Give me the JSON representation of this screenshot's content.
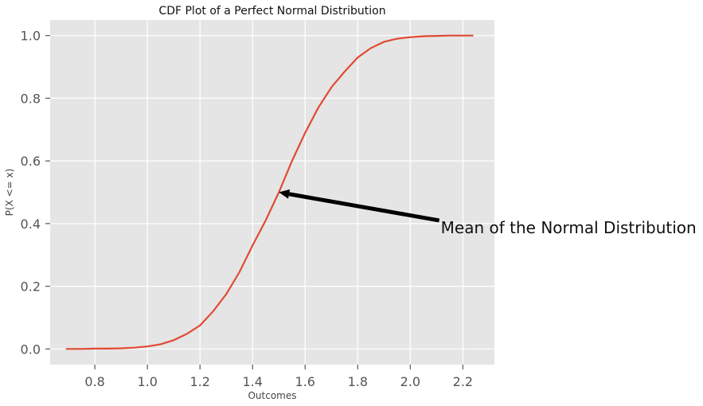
{
  "chart_data": {
    "type": "line",
    "title": "CDF Plot of a Perfect Normal Distribution",
    "xlabel": "Outcomes",
    "ylabel": "P(X <= x)",
    "xlim": [
      0.63,
      2.32
    ],
    "ylim": [
      -0.05,
      1.05
    ],
    "xticks": [
      0.8,
      1.0,
      1.2,
      1.4,
      1.6,
      1.8,
      2.0,
      2.2
    ],
    "xtick_labels": [
      "0.8",
      "1.0",
      "1.2",
      "1.4",
      "1.6",
      "1.8",
      "2.0",
      "2.2"
    ],
    "yticks": [
      0.0,
      0.2,
      0.4,
      0.6,
      0.8,
      1.0
    ],
    "ytick_labels": [
      "0.0",
      "0.2",
      "0.4",
      "0.6",
      "0.8",
      "1.0"
    ],
    "grid": true,
    "background": "#e5e5e5",
    "line_color": "#e24a33",
    "series": [
      {
        "x": [
          0.69,
          0.75,
          0.8,
          0.85,
          0.9,
          0.95,
          1.0,
          1.05,
          1.1,
          1.15,
          1.2,
          1.25,
          1.3,
          1.35,
          1.4,
          1.45,
          1.5,
          1.55,
          1.6,
          1.65,
          1.7,
          1.75,
          1.8,
          1.85,
          1.9,
          1.95,
          2.0,
          2.05,
          2.1,
          2.15,
          2.2,
          2.24
        ],
        "y": [
          0.0,
          0.0,
          0.001,
          0.001,
          0.002,
          0.004,
          0.008,
          0.015,
          0.028,
          0.048,
          0.075,
          0.12,
          0.175,
          0.245,
          0.33,
          0.41,
          0.5,
          0.6,
          0.69,
          0.77,
          0.835,
          0.885,
          0.93,
          0.96,
          0.98,
          0.99,
          0.995,
          0.998,
          0.999,
          1.0,
          1.0,
          1.0
        ]
      }
    ],
    "annotation": {
      "text": "Mean of the Normal Distribution",
      "xy": [
        1.5,
        0.5
      ],
      "xytext": [
        2.11,
        0.41
      ],
      "arrow_color": "#000000"
    }
  }
}
